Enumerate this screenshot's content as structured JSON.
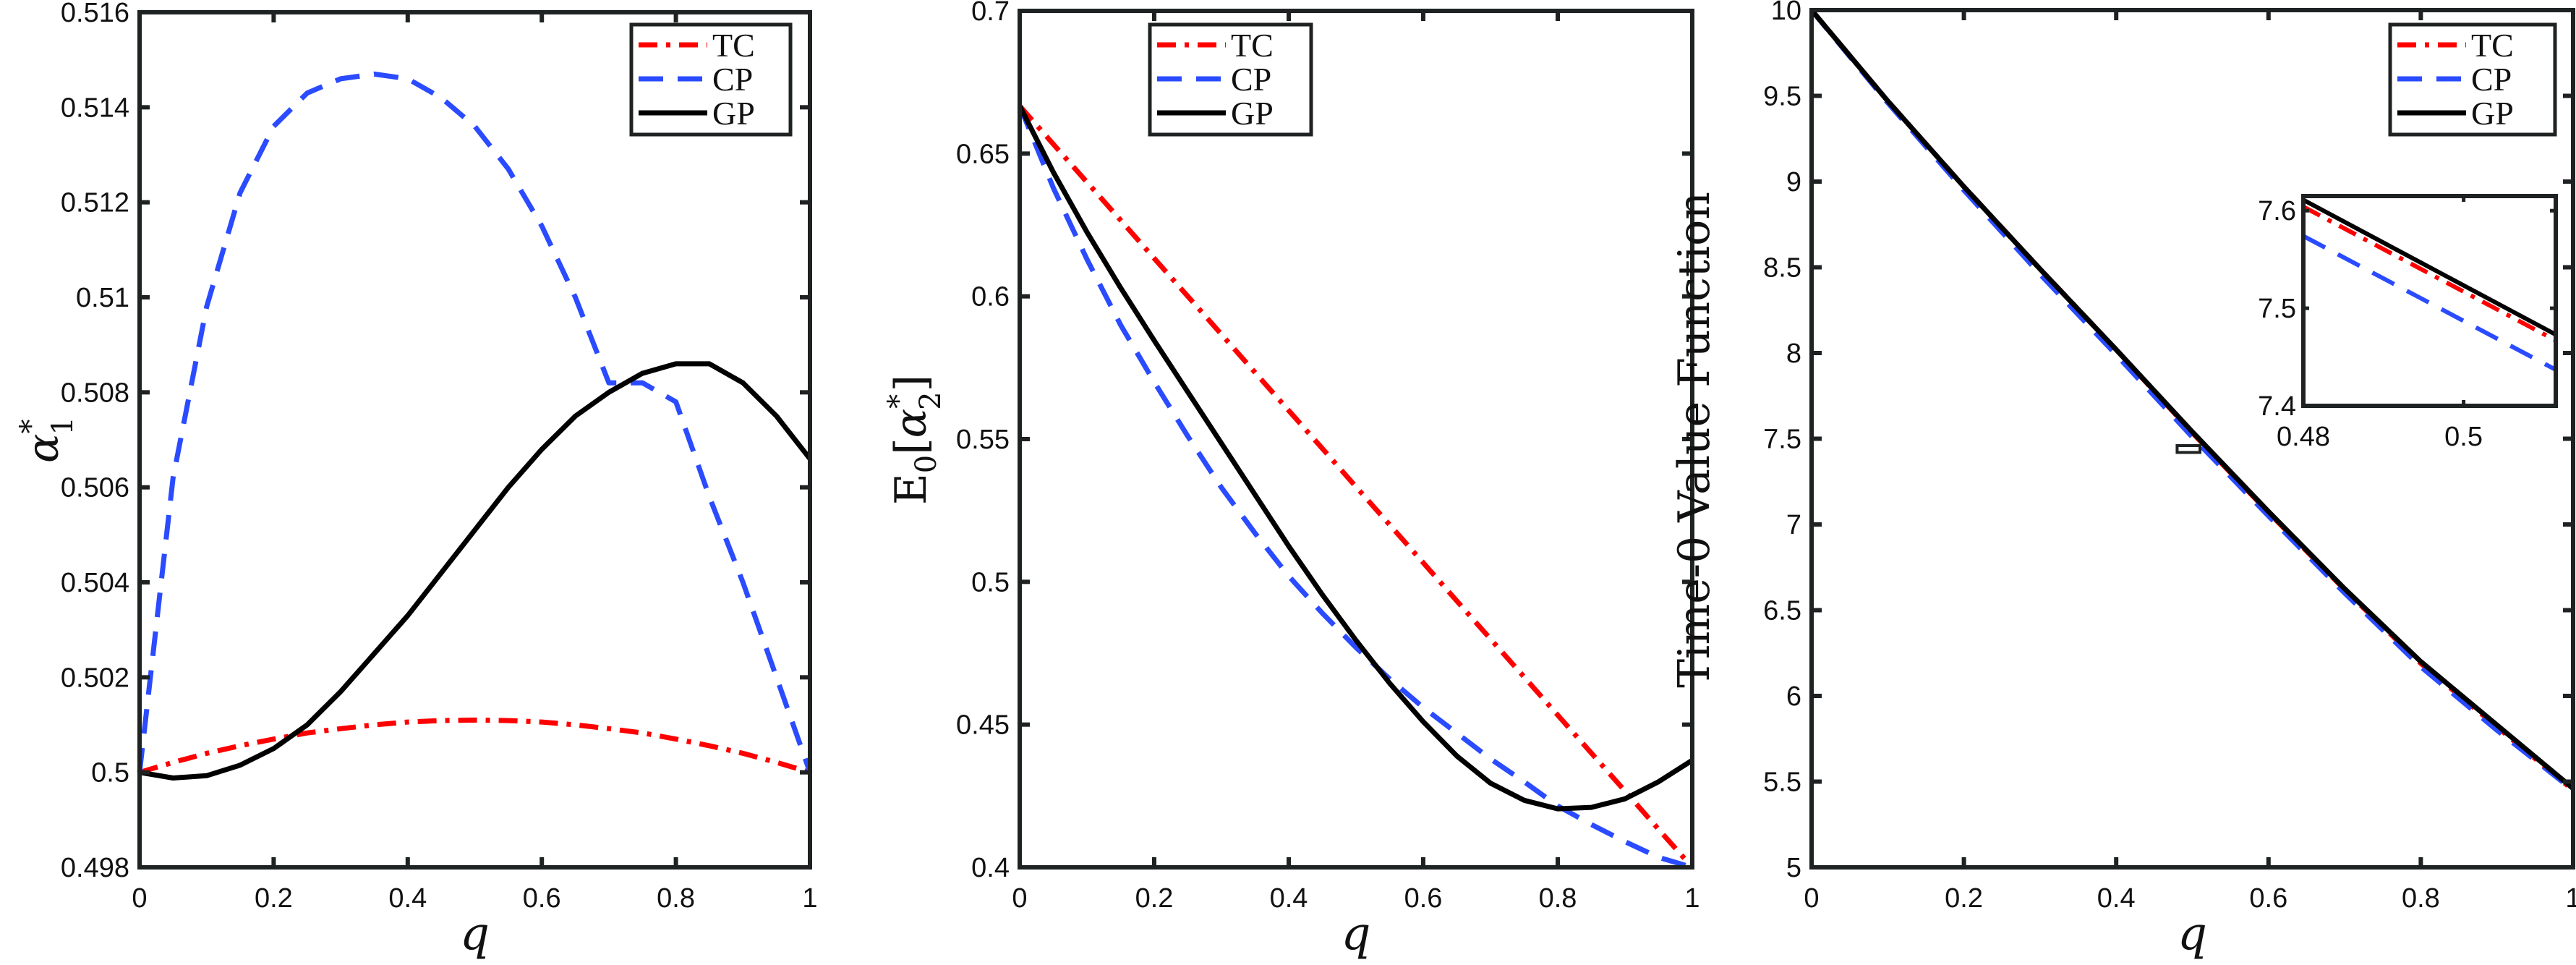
{
  "chart_data": [
    {
      "type": "line",
      "title": "",
      "xlabel": "q",
      "ylabel": "α*_1",
      "xlim": [
        0,
        1
      ],
      "ylim": [
        0.498,
        0.516
      ],
      "xticks": [
        "0",
        "0.2",
        "0.4",
        "0.6",
        "0.8",
        "1"
      ],
      "yticks": [
        "0.498",
        "0.5",
        "0.502",
        "0.504",
        "0.506",
        "0.508",
        "0.51",
        "0.512",
        "0.514",
        "0.516"
      ],
      "grid": false,
      "legend_position": "top-right",
      "x": [
        0,
        0.05,
        0.1,
        0.15,
        0.2,
        0.25,
        0.3,
        0.35,
        0.4,
        0.45,
        0.5,
        0.55,
        0.6,
        0.65,
        0.7,
        0.75,
        0.8,
        0.85,
        0.9,
        0.95,
        1.0
      ],
      "series": [
        {
          "name": "TC",
          "color": "#ff0000",
          "style": "dashdot",
          "values": [
            0.5,
            0.50021,
            0.5004,
            0.50056,
            0.5007,
            0.50083,
            0.50092,
            0.501,
            0.50106,
            0.50109,
            0.5011,
            0.50109,
            0.50106,
            0.501,
            0.50092,
            0.50083,
            0.5007,
            0.50056,
            0.5004,
            0.50021,
            0.5
          ]
        },
        {
          "name": "CP",
          "color": "#2a4bff",
          "style": "dashed",
          "values": [
            0.5,
            0.5062,
            0.5098,
            0.5122,
            0.5136,
            0.5143,
            0.5146,
            0.5147,
            0.5146,
            0.5142,
            0.5136,
            0.5127,
            0.5115,
            0.51,
            0.5082,
            0.5082,
            0.5078,
            0.5058,
            0.504,
            0.502,
            0.5
          ]
        },
        {
          "name": "GP",
          "color": "#000000",
          "style": "solid",
          "values": [
            0.5,
            0.49988,
            0.49993,
            0.50015,
            0.5005,
            0.501,
            0.5017,
            0.5025,
            0.5033,
            0.5042,
            0.5051,
            0.506,
            0.5068,
            0.5075,
            0.508,
            0.5084,
            0.5086,
            0.5086,
            0.5082,
            0.5075,
            0.5066
          ]
        }
      ]
    },
    {
      "type": "line",
      "title": "",
      "xlabel": "q",
      "ylabel": "E_0[α*_2]",
      "xlim": [
        0,
        1
      ],
      "ylim": [
        0.4,
        0.7
      ],
      "xticks": [
        "0",
        "0.2",
        "0.4",
        "0.6",
        "0.8",
        "1"
      ],
      "yticks": [
        "0.4",
        "0.45",
        "0.5",
        "0.55",
        "0.6",
        "0.65",
        "0.7"
      ],
      "grid": false,
      "legend_position": "top-right",
      "x": [
        0,
        0.05,
        0.1,
        0.15,
        0.2,
        0.25,
        0.3,
        0.35,
        0.4,
        0.45,
        0.5,
        0.55,
        0.6,
        0.65,
        0.7,
        0.75,
        0.8,
        0.85,
        0.9,
        0.95,
        1.0
      ],
      "series": [
        {
          "name": "TC",
          "color": "#ff0000",
          "style": "dashdot",
          "values": [
            0.6667,
            0.6533,
            0.64,
            0.6267,
            0.6133,
            0.6,
            0.5867,
            0.5733,
            0.56,
            0.5467,
            0.5333,
            0.52,
            0.5067,
            0.4933,
            0.48,
            0.4667,
            0.4533,
            0.44,
            0.4267,
            0.4133,
            0.4
          ]
        },
        {
          "name": "CP",
          "color": "#2a4bff",
          "style": "dashed",
          "values": [
            0.6667,
            0.638,
            0.613,
            0.59,
            0.57,
            0.551,
            0.533,
            0.517,
            0.502,
            0.489,
            0.477,
            0.466,
            0.456,
            0.447,
            0.438,
            0.43,
            0.4215,
            0.415,
            0.409,
            0.4035,
            0.4
          ]
        },
        {
          "name": "GP",
          "color": "#000000",
          "style": "solid",
          "values": [
            0.6667,
            0.6435,
            0.6225,
            0.603,
            0.5845,
            0.5665,
            0.5485,
            0.5305,
            0.5125,
            0.4955,
            0.4795,
            0.4645,
            0.451,
            0.439,
            0.4295,
            0.4235,
            0.4205,
            0.421,
            0.424,
            0.43,
            0.4375
          ]
        }
      ]
    },
    {
      "type": "line",
      "title": "",
      "xlabel": "q",
      "ylabel": "Time-0 Value Function",
      "xlim": [
        0,
        1
      ],
      "ylim": [
        5,
        10
      ],
      "xticks": [
        "0",
        "0.2",
        "0.4",
        "0.6",
        "0.8",
        "1"
      ],
      "yticks": [
        "5",
        "5.5",
        "6",
        "6.5",
        "7",
        "7.5",
        "8",
        "8.5",
        "9",
        "9.5",
        "10"
      ],
      "grid": false,
      "legend_position": "top-right",
      "x": [
        0,
        0.1,
        0.2,
        0.3,
        0.4,
        0.5,
        0.6,
        0.7,
        0.8,
        0.9,
        1.0
      ],
      "series": [
        {
          "name": "TC",
          "color": "#ff0000",
          "style": "dashdot",
          "values": [
            10,
            9.47,
            8.97,
            8.49,
            8.02,
            7.535,
            7.07,
            6.62,
            6.19,
            5.82,
            5.45
          ]
        },
        {
          "name": "CP",
          "color": "#2a4bff",
          "style": "dashed",
          "values": [
            10,
            9.46,
            8.95,
            8.46,
            7.99,
            7.51,
            7.05,
            6.6,
            6.17,
            5.8,
            5.45
          ]
        },
        {
          "name": "GP",
          "color": "#000000",
          "style": "solid",
          "values": [
            10,
            9.47,
            8.97,
            8.49,
            8.02,
            7.54,
            7.075,
            6.625,
            6.2,
            5.83,
            5.46
          ]
        }
      ],
      "zoom_box": {
        "xlim": [
          0.48,
          0.51
        ],
        "ylim": [
          7.4,
          7.62
        ]
      },
      "inset": {
        "xlim": [
          0.48,
          0.5115
        ],
        "ylim": [
          7.4,
          7.615
        ],
        "xticks": [
          "0.48",
          "0.5"
        ],
        "yticks": [
          "7.4",
          "7.5",
          "7.6"
        ],
        "x": [
          0.48,
          0.5115
        ],
        "series": [
          {
            "name": "TC",
            "values": [
              7.604,
              7.467
            ]
          },
          {
            "name": "CP",
            "values": [
              7.574,
              7.437
            ]
          },
          {
            "name": "GP",
            "values": [
              7.611,
              7.473
            ]
          }
        ]
      }
    }
  ],
  "legend": {
    "entries": [
      "TC",
      "CP",
      "GP"
    ]
  },
  "colors": {
    "tc": "#ff0000",
    "cp": "#2a4bff",
    "gp": "#000000",
    "axis": "#1f2222"
  }
}
